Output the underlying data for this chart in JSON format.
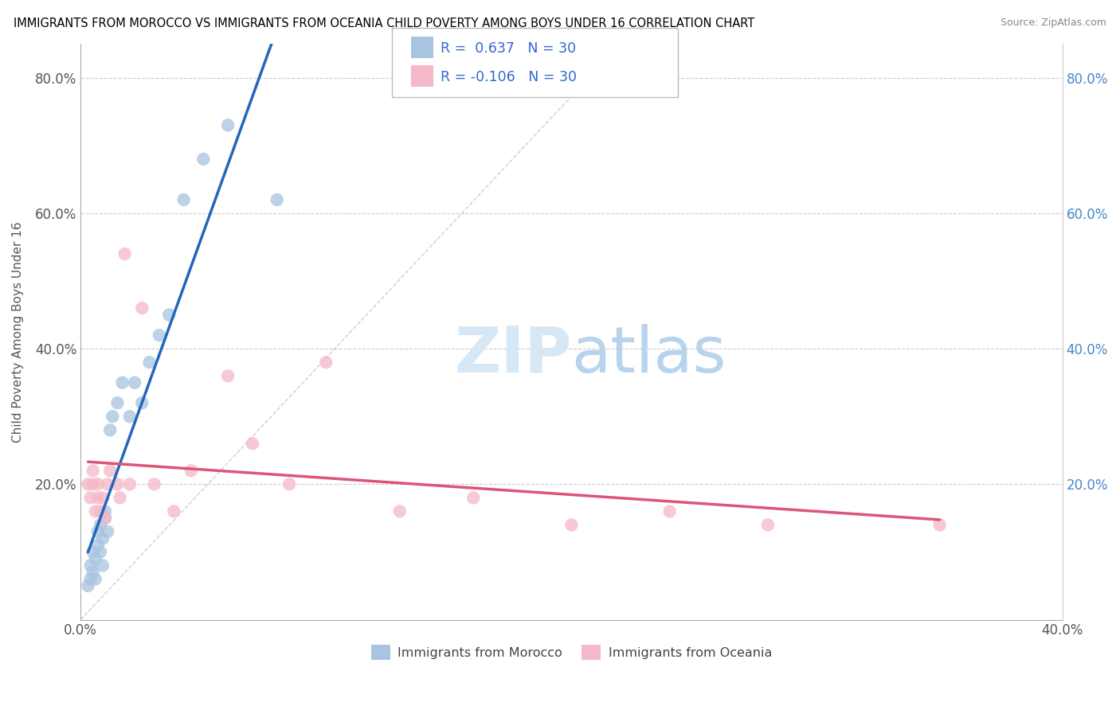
{
  "title": "IMMIGRANTS FROM MOROCCO VS IMMIGRANTS FROM OCEANIA CHILD POVERTY AMONG BOYS UNDER 16 CORRELATION CHART",
  "source": "Source: ZipAtlas.com",
  "ylabel": "Child Poverty Among Boys Under 16",
  "xlim": [
    0.0,
    0.4
  ],
  "ylim": [
    0.0,
    0.85
  ],
  "x_ticks": [
    0.0,
    0.05,
    0.1,
    0.15,
    0.2,
    0.25,
    0.3,
    0.35,
    0.4
  ],
  "y_ticks": [
    0.0,
    0.2,
    0.4,
    0.6,
    0.8
  ],
  "y_tick_labels": [
    "",
    "20.0%",
    "40.0%",
    "60.0%",
    "80.0%"
  ],
  "R_morocco": 0.637,
  "N_morocco": 30,
  "R_oceania": -0.106,
  "N_oceania": 30,
  "morocco_color": "#a8c4e0",
  "oceania_color": "#f4b8c8",
  "morocco_line_color": "#2266bb",
  "oceania_line_color": "#dd5577",
  "morocco_x": [
    0.003,
    0.004,
    0.004,
    0.005,
    0.005,
    0.006,
    0.006,
    0.007,
    0.007,
    0.008,
    0.008,
    0.009,
    0.009,
    0.01,
    0.01,
    0.011,
    0.012,
    0.013,
    0.015,
    0.017,
    0.02,
    0.022,
    0.025,
    0.028,
    0.032,
    0.036,
    0.042,
    0.05,
    0.06,
    0.08
  ],
  "morocco_y": [
    0.05,
    0.06,
    0.08,
    0.07,
    0.1,
    0.06,
    0.09,
    0.11,
    0.13,
    0.1,
    0.14,
    0.08,
    0.12,
    0.15,
    0.16,
    0.13,
    0.28,
    0.3,
    0.32,
    0.35,
    0.3,
    0.35,
    0.32,
    0.38,
    0.42,
    0.45,
    0.62,
    0.68,
    0.73,
    0.62
  ],
  "oceania_x": [
    0.003,
    0.004,
    0.005,
    0.005,
    0.006,
    0.007,
    0.007,
    0.008,
    0.009,
    0.01,
    0.011,
    0.012,
    0.015,
    0.016,
    0.018,
    0.02,
    0.025,
    0.03,
    0.038,
    0.045,
    0.06,
    0.07,
    0.085,
    0.1,
    0.13,
    0.16,
    0.2,
    0.24,
    0.28,
    0.35
  ],
  "oceania_y": [
    0.2,
    0.18,
    0.2,
    0.22,
    0.16,
    0.18,
    0.2,
    0.16,
    0.18,
    0.15,
    0.2,
    0.22,
    0.2,
    0.18,
    0.54,
    0.2,
    0.46,
    0.2,
    0.16,
    0.22,
    0.36,
    0.26,
    0.2,
    0.38,
    0.16,
    0.18,
    0.14,
    0.16,
    0.14,
    0.14
  ]
}
